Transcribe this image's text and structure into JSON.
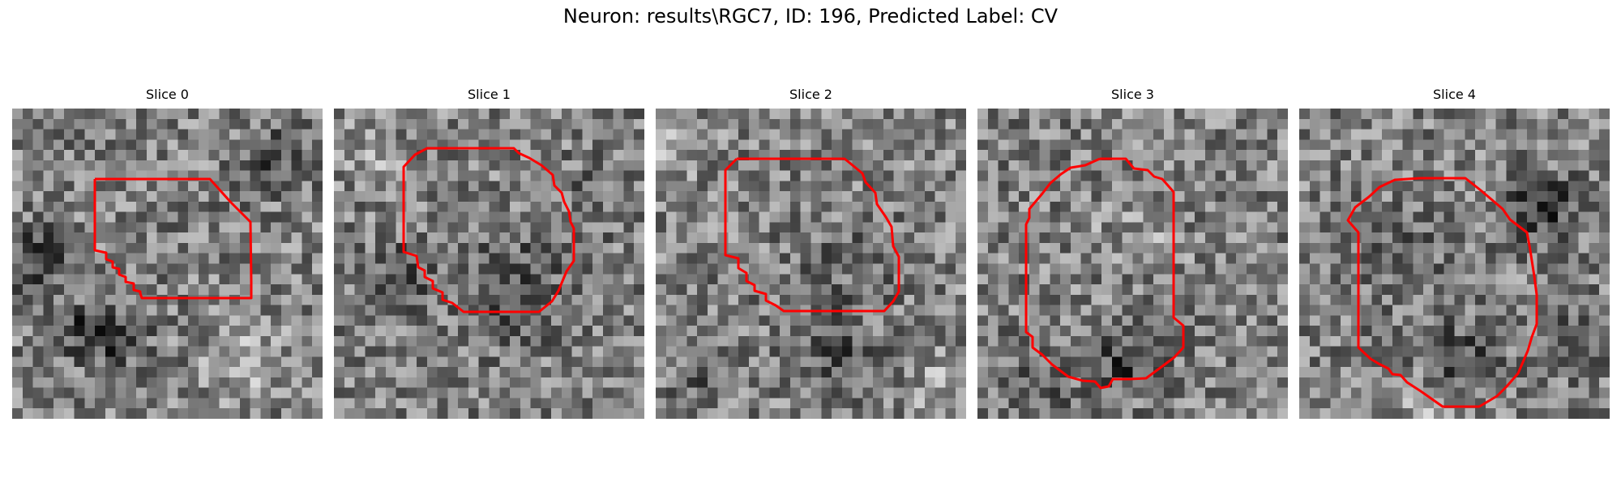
{
  "figure": {
    "title": "Neuron: results\\RGC7, ID: 196, Predicted Label: CV",
    "outline_color": "#ff0000",
    "colormap": "gray"
  },
  "panels": [
    {
      "title": "Slice 0"
    },
    {
      "title": "Slice 1"
    },
    {
      "title": "Slice 2"
    },
    {
      "title": "Slice 3"
    },
    {
      "title": "Slice 4"
    }
  ]
}
